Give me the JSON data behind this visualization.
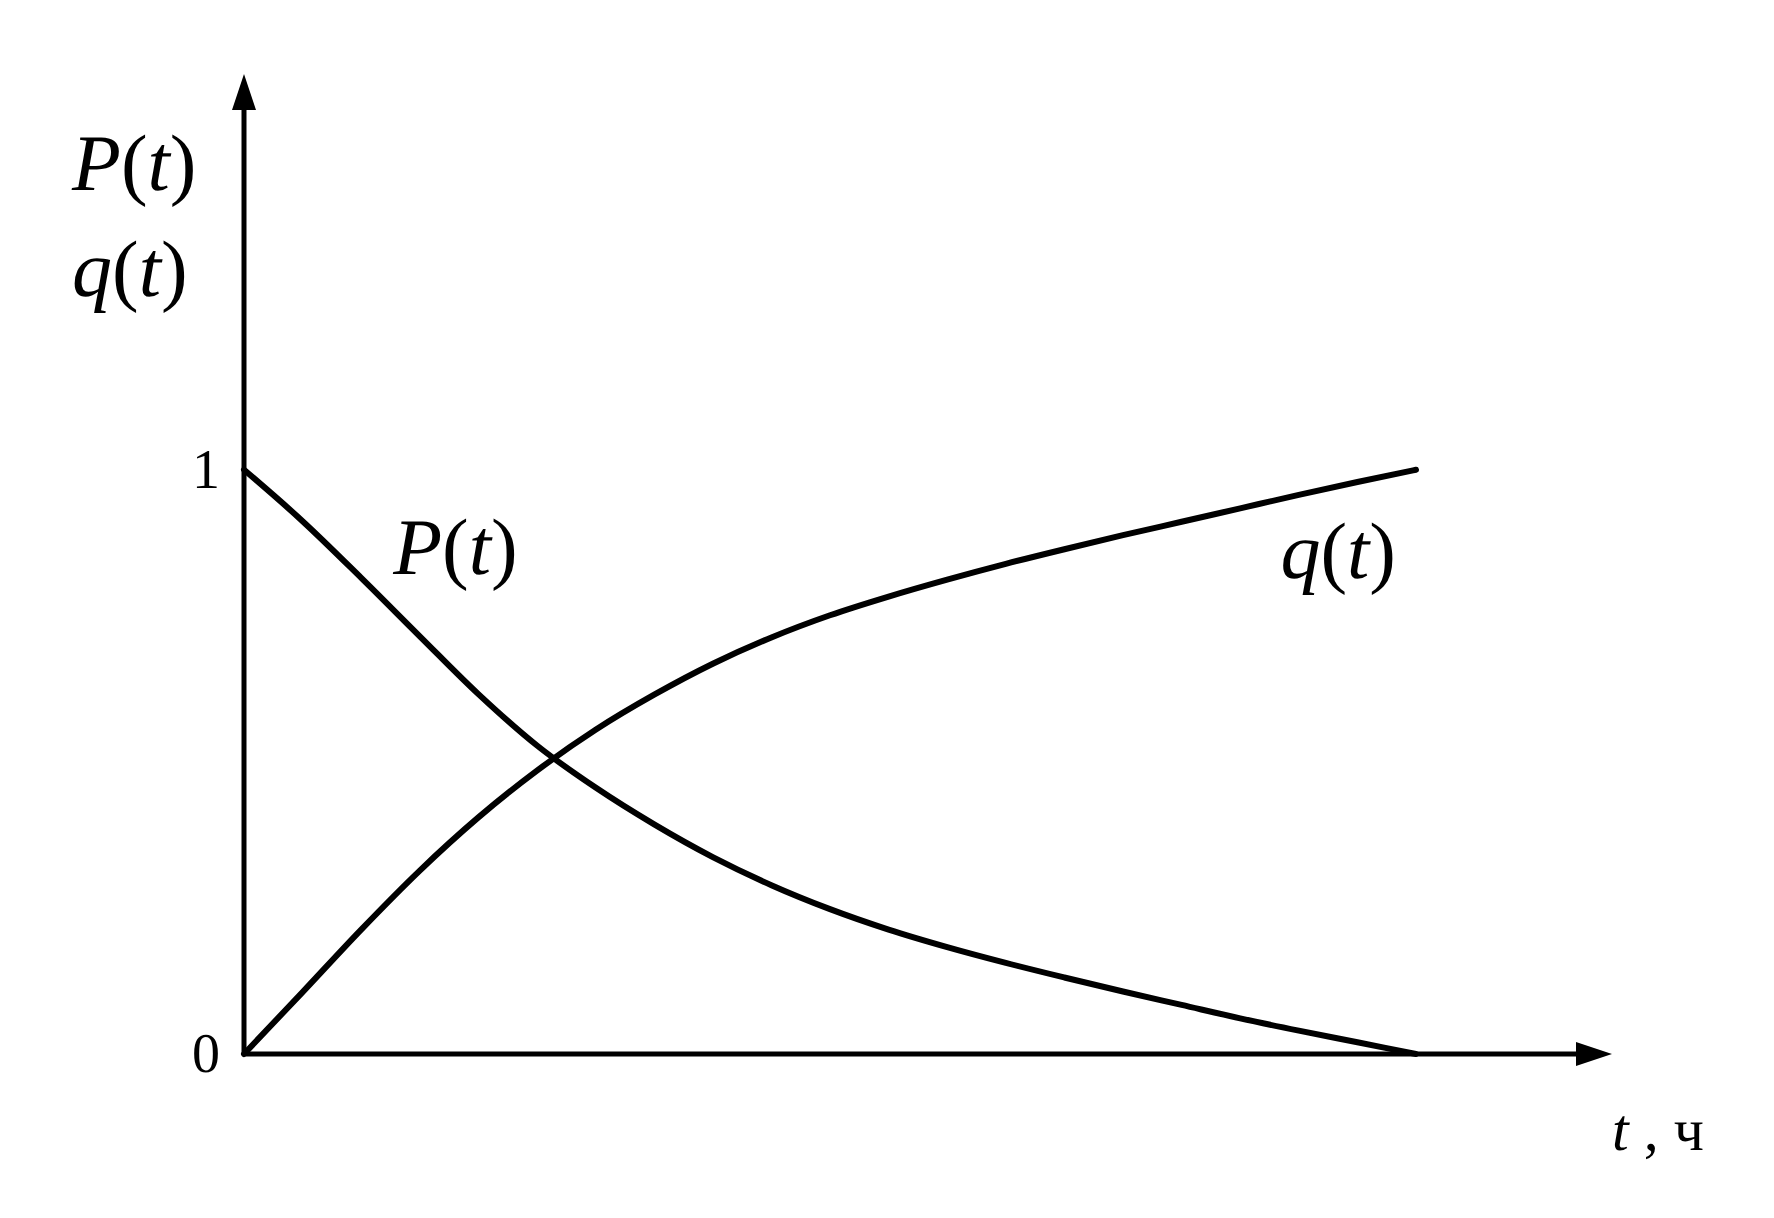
{
  "chart_data": {
    "type": "line",
    "xlabel": "t , ч",
    "ylabel": "P(t)\nq(t)",
    "categories": [
      null,
      null,
      null,
      null,
      null,
      null,
      null,
      null,
      null,
      null,
      null,
      null,
      null,
      null,
      null,
      null,
      null,
      null,
      null,
      null,
      null
    ],
    "series": [
      {
        "name": "P(t)",
        "color": "#000000",
        "values": [
          1.0,
          0.912,
          0.815,
          0.715,
          0.616,
          0.528,
          0.456,
          0.393,
          0.337,
          0.289,
          0.248,
          0.213,
          0.183,
          0.156,
          0.131,
          0.107,
          0.084,
          0.061,
          0.04,
          0.02,
          0.0
        ]
      },
      {
        "name": "q(t)",
        "color": "#000000",
        "values": [
          0.0,
          0.106,
          0.213,
          0.314,
          0.405,
          0.485,
          0.555,
          0.615,
          0.668,
          0.713,
          0.751,
          0.783,
          0.812,
          0.839,
          0.864,
          0.888,
          0.911,
          0.934,
          0.957,
          0.979,
          1.0
        ]
      }
    ],
    "ylim": [
      0,
      1.65
    ],
    "yticks": [
      0,
      1
    ],
    "line_style": "solid"
  }
}
